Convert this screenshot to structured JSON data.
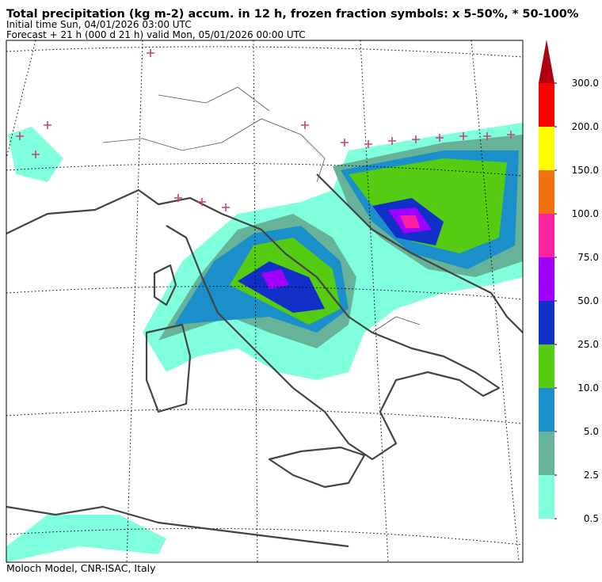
{
  "header": {
    "title": "Total precipitation (kg m-2) accum. in 12 h, frozen fraction symbols: x 5-50%, * 50-100%",
    "initial_time": "Initial time  Sun, 04/01/2026  03:00 UTC",
    "forecast": "Forecast  +  21 h  (000 d 21 h)  valid Mon, 05/01/2026 00:00 UTC"
  },
  "colorbar": {
    "levels": [
      {
        "value": 0.5,
        "label": "0.5"
      },
      {
        "value": 2.5,
        "label": "2.5"
      },
      {
        "value": 5,
        "label": "5.0"
      },
      {
        "value": 10,
        "label": "10.0"
      },
      {
        "value": 25,
        "label": "25.0"
      },
      {
        "value": 50,
        "label": "50.0"
      },
      {
        "value": 75,
        "label": "75.0"
      },
      {
        "value": 100,
        "label": "100.0"
      },
      {
        "value": 150,
        "label": "150.0"
      },
      {
        "value": 200,
        "label": "200.0"
      },
      {
        "value": 300,
        "label": "300.0"
      }
    ],
    "colors": [
      "#80ffdc",
      "#66b399",
      "#1a8fc9",
      "#55cc11",
      "#1030c8",
      "#a000ff",
      "#ff20a0",
      "#f07010",
      "#ffff00",
      "#ff0000",
      "#b00010"
    ]
  },
  "footer": "Moloch Model, CNR-ISAC, Italy"
}
